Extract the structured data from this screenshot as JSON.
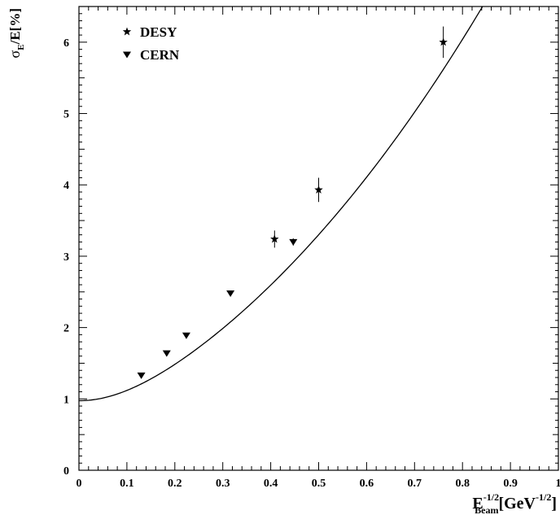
{
  "chart_data": {
    "type": "scatter",
    "xlim": [
      0,
      1
    ],
    "ylim": [
      0,
      6.5
    ],
    "x_ticks": [
      "0",
      "0.1",
      "0.2",
      "0.3",
      "0.4",
      "0.5",
      "0.6",
      "0.7",
      "0.8",
      "0.9",
      "1"
    ],
    "y_ticks": [
      "0",
      "1",
      "2",
      "3",
      "4",
      "5",
      "6"
    ],
    "xlabel": {
      "base": "E",
      "sup": "-1/2",
      "sub": "Beam",
      "unit_open": "[GeV",
      "unit_sup": "-1/2",
      "unit_close": "]"
    },
    "ylabel": {
      "sigma": "σ",
      "sigma_sub": "E",
      "rest": "/E[%]"
    },
    "grid": false,
    "legend_position": "top-left",
    "series": [
      {
        "name": "DESY",
        "marker": "star",
        "x": [
          0.408,
          0.5,
          0.76
        ],
        "y": [
          3.24,
          3.93,
          6.0
        ],
        "yerr": [
          0.12,
          0.17,
          0.22
        ]
      },
      {
        "name": "CERN",
        "marker": "triangle-down",
        "x": [
          0.13,
          0.183,
          0.224,
          0.316,
          0.447
        ],
        "y": [
          1.33,
          1.64,
          1.89,
          2.48,
          3.2
        ],
        "yerr": [
          0.03,
          0.03,
          0.03,
          0.03,
          0.05
        ]
      }
    ],
    "fit": {
      "function": "sqrt(a^2 + (b*x)^2 + (c*x^2)^2)",
      "params": {
        "a": 0.975,
        "b": 5.45,
        "c": 6.35
      },
      "x_range": [
        0,
        1
      ]
    }
  }
}
